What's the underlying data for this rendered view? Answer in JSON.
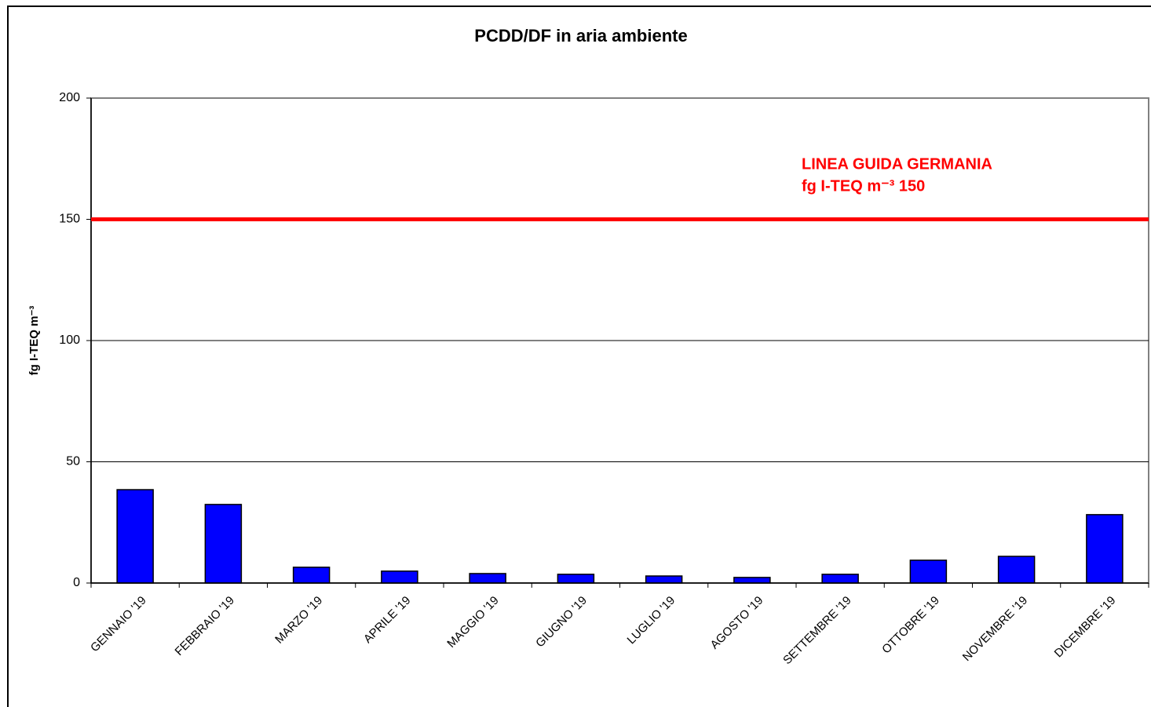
{
  "chart_data": {
    "type": "bar",
    "title": "PCDD/DF in aria ambiente",
    "y_label": "fg I-TEQ m⁻³",
    "categories": [
      "GENNAIO '19",
      "FEBBRAIO '19",
      "MARZO '19",
      "APRILE '19",
      "MAGGIO '19",
      "GIUGNO '19",
      "LUGLIO '19",
      "AGOSTO '19",
      "SETTEMBRE '19",
      "OTTOBRE '19",
      "NOVEMBRE '19",
      "DICEMBRE '19"
    ],
    "values": [
      38.5,
      32.4,
      6.5,
      4.9,
      3.9,
      3.6,
      2.9,
      2.3,
      3.6,
      9.4,
      11,
      28.2
    ],
    "color": "#0000ff",
    "ylim": [
      0,
      200
    ],
    "yticks": [
      0,
      50,
      100,
      150,
      200
    ],
    "grid": true,
    "reference_line": {
      "value": 150,
      "color": "#ff0000",
      "label_lines": [
        "LINEA GUIDA GERMANIA",
        "fg I-TEQ m⁻³ 150"
      ]
    }
  }
}
